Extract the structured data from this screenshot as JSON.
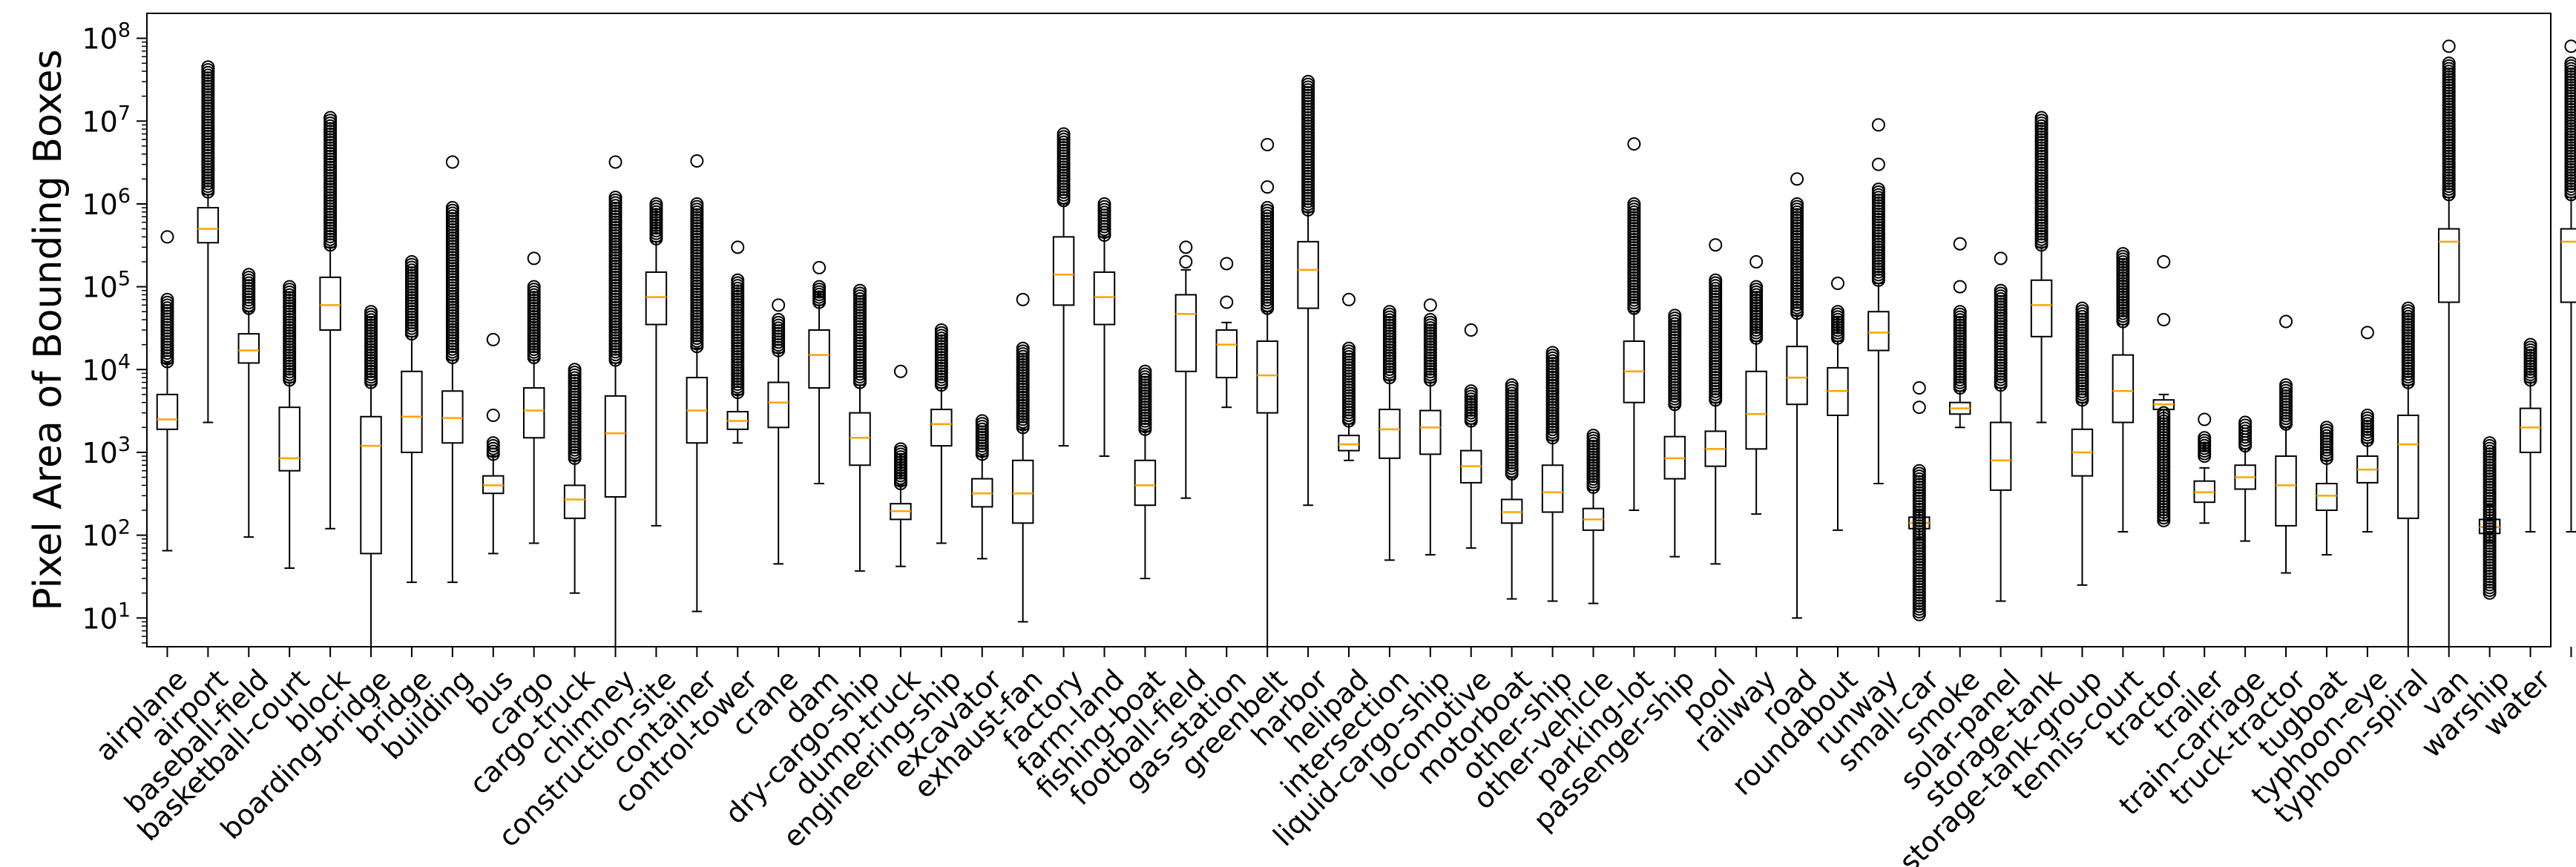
{
  "chart_data": {
    "type": "boxplot",
    "title": "",
    "xlabel": "",
    "ylabel": "Pixel Area of Bounding Boxes",
    "yscale": "log",
    "ylim": [
      4.5,
      200000000
    ],
    "yticks": [
      {
        "value": 10,
        "base": "10",
        "exp": "1"
      },
      {
        "value": 100,
        "base": "10",
        "exp": "2"
      },
      {
        "value": 1000,
        "base": "10",
        "exp": "3"
      },
      {
        "value": 10000,
        "base": "10",
        "exp": "4"
      },
      {
        "value": 100000,
        "base": "10",
        "exp": "5"
      },
      {
        "value": 1000000,
        "base": "10",
        "exp": "6"
      },
      {
        "value": 10000000,
        "base": "10",
        "exp": "7"
      },
      {
        "value": 100000000,
        "base": "10",
        "exp": "8"
      }
    ],
    "colors": {
      "box": "#000000",
      "median": "#ffa500",
      "flier": "#000000"
    },
    "categories": [
      "airplane",
      "airport",
      "baseball-field",
      "basketball-court",
      "block",
      "boarding-bridge",
      "bridge",
      "building",
      "bus",
      "cargo",
      "cargo-truck",
      "chimney",
      "construction-site",
      "container",
      "control-tower",
      "crane",
      "dam",
      "dry-cargo-ship",
      "dump-truck",
      "engineering-ship",
      "excavator",
      "exhaust-fan",
      "factory",
      "farm-land",
      "fishing-boat",
      "football-field",
      "gas-station",
      "greenbelt",
      "harbor",
      "helipad",
      "intersection",
      "liquid-cargo-ship",
      "locomotive",
      "motorboat",
      "other-ship",
      "other-vehicle",
      "parking-lot",
      "passenger-ship",
      "pool",
      "railway",
      "road",
      "roundabout",
      "runway",
      "small-car",
      "smoke",
      "solar-panel",
      "storage-tank",
      "storage-tank-group",
      "tennis-court",
      "tractor",
      "trailer",
      "train-carriage",
      "truck-tractor",
      "tugboat",
      "typhoon-eye",
      "typhoon-spiral",
      "van",
      "warship",
      "water"
    ],
    "boxes": [
      {
        "whislo": 65,
        "q1": 1900,
        "med": 2500,
        "q3": 5000,
        "whishi": 12000,
        "fliers": {
          "lo": 12500,
          "hi": 70000,
          "extra": [
            400000
          ]
        }
      },
      {
        "whislo": 2300,
        "q1": 340000,
        "med": 500000,
        "q3": 900000,
        "whishi": 1300000,
        "fliers": {
          "lo": 1400000,
          "hi": 45000000,
          "extra": []
        }
      },
      {
        "whislo": 95,
        "q1": 12000,
        "med": 17000,
        "q3": 27000,
        "whishi": 50000,
        "fliers": {
          "lo": 55000,
          "hi": 140000,
          "extra": []
        }
      },
      {
        "whislo": 40,
        "q1": 600,
        "med": 850,
        "q3": 3500,
        "whishi": 7000,
        "fliers": {
          "lo": 7500,
          "hi": 100000,
          "extra": []
        }
      },
      {
        "whislo": 120,
        "q1": 30000,
        "med": 60000,
        "q3": 130000,
        "whishi": 300000,
        "fliers": {
          "lo": 320000,
          "hi": 11000000,
          "extra": []
        }
      },
      {
        "whislo": 4,
        "q1": 60,
        "med": 1200,
        "q3": 2700,
        "whishi": 6500,
        "fliers": {
          "lo": 7000,
          "hi": 50000,
          "extra": []
        }
      },
      {
        "whislo": 27,
        "q1": 1000,
        "med": 2700,
        "q3": 9500,
        "whishi": 25000,
        "fliers": {
          "lo": 27000,
          "hi": 200000,
          "extra": []
        }
      },
      {
        "whislo": 27,
        "q1": 1300,
        "med": 2600,
        "q3": 5500,
        "whishi": 13000,
        "fliers": {
          "lo": 14000,
          "hi": 900000,
          "extra": [
            3200000
          ]
        }
      },
      {
        "whislo": 60,
        "q1": 320,
        "med": 400,
        "q3": 520,
        "whishi": 900,
        "fliers": {
          "lo": 950,
          "hi": 1300,
          "extra": [
            2800,
            23000
          ]
        }
      },
      {
        "whislo": 80,
        "q1": 1500,
        "med": 3200,
        "q3": 6000,
        "whishi": 13000,
        "fliers": {
          "lo": 14000,
          "hi": 100000,
          "extra": [
            220000
          ]
        }
      },
      {
        "whislo": 20,
        "q1": 160,
        "med": 270,
        "q3": 400,
        "whishi": 800,
        "fliers": {
          "lo": 850,
          "hi": 10000,
          "extra": []
        }
      },
      {
        "whislo": 4,
        "q1": 290,
        "med": 1700,
        "q3": 4800,
        "whishi": 12000,
        "fliers": {
          "lo": 13000,
          "hi": 1200000,
          "extra": [
            3200000
          ]
        }
      },
      {
        "whislo": 130,
        "q1": 35000,
        "med": 75000,
        "q3": 150000,
        "whishi": 350000,
        "fliers": {
          "lo": 380000,
          "hi": 1000000,
          "extra": []
        }
      },
      {
        "whislo": 12,
        "q1": 1300,
        "med": 3200,
        "q3": 8000,
        "whishi": 18000,
        "fliers": {
          "lo": 19000,
          "hi": 1000000,
          "extra": [
            3300000
          ]
        }
      },
      {
        "whislo": 1300,
        "q1": 1900,
        "med": 2400,
        "q3": 3100,
        "whishi": 5000,
        "fliers": {
          "lo": 5300,
          "hi": 120000,
          "extra": [
            300000
          ]
        }
      },
      {
        "whislo": 45,
        "q1": 2000,
        "med": 4000,
        "q3": 7000,
        "whishi": 16000,
        "fliers": {
          "lo": 17000,
          "hi": 40000,
          "extra": [
            60000
          ]
        }
      },
      {
        "whislo": 420,
        "q1": 6000,
        "med": 15000,
        "q3": 30000,
        "whishi": 60000,
        "fliers": {
          "lo": 65000,
          "hi": 100000,
          "extra": [
            170000
          ]
        }
      },
      {
        "whislo": 37,
        "q1": 700,
        "med": 1500,
        "q3": 3000,
        "whishi": 6500,
        "fliers": {
          "lo": 7000,
          "hi": 90000,
          "extra": []
        }
      },
      {
        "whislo": 42,
        "q1": 155,
        "med": 195,
        "q3": 240,
        "whishi": 400,
        "fliers": {
          "lo": 420,
          "hi": 1100,
          "extra": [
            9500
          ]
        }
      },
      {
        "whislo": 80,
        "q1": 1200,
        "med": 2200,
        "q3": 3300,
        "whishi": 6000,
        "fliers": {
          "lo": 6500,
          "hi": 30000,
          "extra": []
        }
      },
      {
        "whislo": 52,
        "q1": 220,
        "med": 320,
        "q3": 480,
        "whishi": 900,
        "fliers": {
          "lo": 950,
          "hi": 2400,
          "extra": []
        }
      },
      {
        "whislo": 9,
        "q1": 140,
        "med": 320,
        "q3": 800,
        "whishi": 1900,
        "fliers": {
          "lo": 2000,
          "hi": 18000,
          "extra": [
            70000
          ]
        }
      },
      {
        "whislo": 1200,
        "q1": 60000,
        "med": 140000,
        "q3": 400000,
        "whishi": 1000000,
        "fliers": {
          "lo": 1100000,
          "hi": 7000000,
          "extra": []
        }
      },
      {
        "whislo": 900,
        "q1": 35000,
        "med": 75000,
        "q3": 150000,
        "whishi": 400000,
        "fliers": {
          "lo": 420000,
          "hi": 1000000,
          "extra": []
        }
      },
      {
        "whislo": 30,
        "q1": 230,
        "med": 400,
        "q3": 800,
        "whishi": 1800,
        "fliers": {
          "lo": 1900,
          "hi": 9500,
          "extra": []
        }
      },
      {
        "whislo": 280,
        "q1": 9500,
        "med": 47000,
        "q3": 80000,
        "whishi": 160000,
        "fliers": {
          "lo": 200000,
          "hi": 200000,
          "extra": [
            300000
          ]
        }
      },
      {
        "whislo": 3500,
        "q1": 8000,
        "med": 20000,
        "q3": 30000,
        "whishi": 37000,
        "fliers": {
          "lo": 65000,
          "hi": 65000,
          "extra": [
            190000
          ]
        }
      },
      {
        "whislo": 4,
        "q1": 3000,
        "med": 8500,
        "q3": 22000,
        "whishi": 50000,
        "fliers": {
          "lo": 55000,
          "hi": 900000,
          "extra": [
            1600000,
            5200000
          ]
        }
      },
      {
        "whislo": 230,
        "q1": 55000,
        "med": 160000,
        "q3": 350000,
        "whishi": 800000,
        "fliers": {
          "lo": 850000,
          "hi": 30000000,
          "extra": []
        }
      },
      {
        "whislo": 800,
        "q1": 1050,
        "med": 1250,
        "q3": 1600,
        "whishi": 2200,
        "fliers": {
          "lo": 2400,
          "hi": 18000,
          "extra": [
            70000
          ]
        }
      },
      {
        "whislo": 50,
        "q1": 850,
        "med": 1900,
        "q3": 3300,
        "whishi": 7500,
        "fliers": {
          "lo": 8000,
          "hi": 50000,
          "extra": []
        }
      },
      {
        "whislo": 58,
        "q1": 950,
        "med": 2000,
        "q3": 3200,
        "whishi": 7000,
        "fliers": {
          "lo": 7500,
          "hi": 40000,
          "extra": [
            60000
          ]
        }
      },
      {
        "whislo": 70,
        "q1": 430,
        "med": 680,
        "q3": 1050,
        "whishi": 2200,
        "fliers": {
          "lo": 2400,
          "hi": 5500,
          "extra": [
            30000
          ]
        }
      },
      {
        "whislo": 17,
        "q1": 140,
        "med": 190,
        "q3": 270,
        "whishi": 500,
        "fliers": {
          "lo": 550,
          "hi": 6500,
          "extra": []
        }
      },
      {
        "whislo": 16,
        "q1": 190,
        "med": 330,
        "q3": 700,
        "whishi": 1400,
        "fliers": {
          "lo": 1500,
          "hi": 16000,
          "extra": []
        }
      },
      {
        "whislo": 15,
        "q1": 115,
        "med": 155,
        "q3": 210,
        "whishi": 350,
        "fliers": {
          "lo": 380,
          "hi": 1600,
          "extra": []
        }
      },
      {
        "whislo": 200,
        "q1": 4000,
        "med": 9500,
        "q3": 22000,
        "whishi": 50000,
        "fliers": {
          "lo": 55000,
          "hi": 1000000,
          "extra": [
            5300000
          ]
        }
      },
      {
        "whislo": 55,
        "q1": 480,
        "med": 850,
        "q3": 1550,
        "whishi": 3500,
        "fliers": {
          "lo": 3800,
          "hi": 45000,
          "extra": []
        }
      },
      {
        "whislo": 45,
        "q1": 680,
        "med": 1100,
        "q3": 1800,
        "whishi": 4000,
        "fliers": {
          "lo": 4300,
          "hi": 120000,
          "extra": [
            320000
          ]
        }
      },
      {
        "whislo": 180,
        "q1": 1100,
        "med": 2900,
        "q3": 9500,
        "whishi": 22000,
        "fliers": {
          "lo": 24000,
          "hi": 100000,
          "extra": [
            200000
          ]
        }
      },
      {
        "whislo": 10,
        "q1": 3800,
        "med": 8000,
        "q3": 19000,
        "whishi": 45000,
        "fliers": {
          "lo": 48000,
          "hi": 1000000,
          "extra": [
            2000000
          ]
        }
      },
      {
        "whislo": 115,
        "q1": 2800,
        "med": 5500,
        "q3": 10500,
        "whishi": 22000,
        "fliers": {
          "lo": 24000,
          "hi": 50000,
          "extra": [
            110000
          ]
        }
      },
      {
        "whislo": 420,
        "q1": 17000,
        "med": 28000,
        "q3": 50000,
        "whishi": 110000,
        "fliers": {
          "lo": 120000,
          "hi": 1500000,
          "extra": [
            3000000,
            9000000
          ]
        }
      },
      {
        "whislo": 90,
        "q1": 120,
        "med": 140,
        "q3": 165,
        "whishi": 200,
        "fliers": {
          "lo": 11,
          "hi": 600,
          "extra": [
            3500,
            6000
          ]
        }
      },
      {
        "whislo": 2000,
        "q1": 2900,
        "med": 3400,
        "q3": 4000,
        "whishi": 5500,
        "fliers": {
          "lo": 6000,
          "hi": 50000,
          "extra": [
            100000,
            330000
          ]
        }
      },
      {
        "whislo": 16,
        "q1": 350,
        "med": 800,
        "q3": 2300,
        "whishi": 6000,
        "fliers": {
          "lo": 6500,
          "hi": 90000,
          "extra": [
            220000
          ]
        }
      },
      {
        "whislo": 2300,
        "q1": 25000,
        "med": 60000,
        "q3": 120000,
        "whishi": 300000,
        "fliers": {
          "lo": 320000,
          "hi": 11000000,
          "extra": []
        }
      },
      {
        "whislo": 25,
        "q1": 520,
        "med": 1000,
        "q3": 1900,
        "whishi": 4000,
        "fliers": {
          "lo": 4300,
          "hi": 55000,
          "extra": []
        }
      },
      {
        "whislo": 110,
        "q1": 2300,
        "med": 5500,
        "q3": 15000,
        "whishi": 35000,
        "fliers": {
          "lo": 38000,
          "hi": 250000,
          "extra": []
        }
      },
      {
        "whislo": 150,
        "q1": 3300,
        "med": 3800,
        "q3": 4300,
        "whishi": 5000,
        "fliers": {
          "lo": 150,
          "hi": 3000,
          "extra": [
            40000,
            200000
          ]
        }
      },
      {
        "whislo": 140,
        "q1": 250,
        "med": 330,
        "q3": 450,
        "whishi": 650,
        "fliers": {
          "lo": 900,
          "hi": 1500,
          "extra": [
            2500
          ]
        }
      },
      {
        "whislo": 85,
        "q1": 360,
        "med": 500,
        "q3": 700,
        "whishi": 1100,
        "fliers": {
          "lo": 1200,
          "hi": 2300,
          "extra": []
        }
      },
      {
        "whislo": 35,
        "q1": 130,
        "med": 400,
        "q3": 900,
        "whishi": 2000,
        "fliers": {
          "lo": 2200,
          "hi": 6500,
          "extra": [
            38000
          ]
        }
      },
      {
        "whislo": 58,
        "q1": 200,
        "med": 300,
        "q3": 420,
        "whishi": 800,
        "fliers": {
          "lo": 850,
          "hi": 2000,
          "extra": []
        }
      },
      {
        "whislo": 110,
        "q1": 430,
        "med": 620,
        "q3": 900,
        "whishi": 1300,
        "fliers": {
          "lo": 1400,
          "hi": 2800,
          "extra": [
            28000
          ]
        }
      },
      {
        "whislo": 2,
        "q1": 160,
        "med": 1250,
        "q3": 2800,
        "whishi": 6500,
        "fliers": {
          "lo": 7000,
          "hi": 55000,
          "extra": []
        }
      },
      {
        "whislo": 2,
        "q1": 65000,
        "med": 350000,
        "q3": 500000,
        "whishi": 1200000,
        "fliers": {
          "lo": 1300000,
          "hi": 50000000,
          "extra": [
            80000000
          ]
        }
      },
      {
        "whislo": 85,
        "q1": 105,
        "med": 125,
        "q3": 155,
        "whishi": 230,
        "fliers": {
          "lo": 20,
          "hi": 1300,
          "extra": []
        }
      },
      {
        "whislo": 110,
        "q1": 1000,
        "med": 2000,
        "q3": 3400,
        "whishi": 7000,
        "fliers": {
          "lo": 7500,
          "hi": 20000,
          "extra": []
        }
      },
      {
        "whislo": 110,
        "q1": 65000,
        "med": 350000,
        "q3": 500000,
        "whishi": 1200000,
        "fliers": {
          "lo": 1300000,
          "hi": 50000000,
          "extra": [
            80000000
          ]
        }
      }
    ]
  }
}
